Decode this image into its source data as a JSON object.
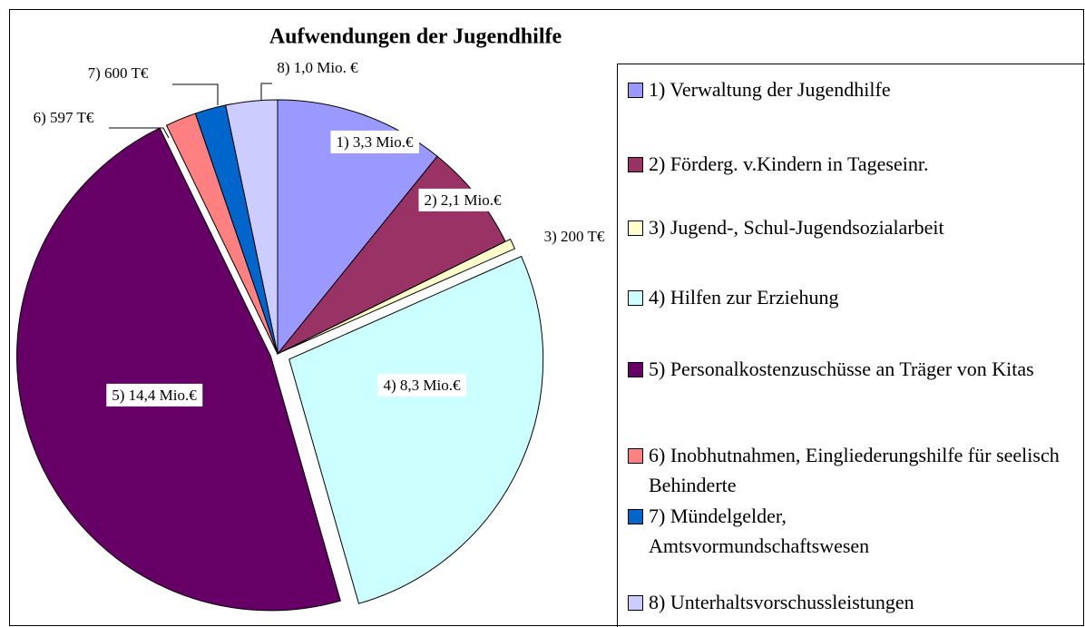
{
  "chart_data": {
    "type": "pie",
    "title": "Aufwendungen der Jugendhilfe",
    "categories": [
      "1) Verwaltung der Jugendhilfe",
      "2) Förderg. v.Kindern in Tageseinr.",
      "3) Jugend-, Schul-Jugendsozialarbeit",
      "4) Hilfen zur Erziehung",
      "5) Personalkostenzuschüsse an Träger von Kitas",
      "6) Inobhutnahmen, Eingliederungshilfe für seelisch Behinderte",
      "7) Mündelgelder, Amtsvormundschaftswesen",
      "8) Unterhaltsvorschussleistungen"
    ],
    "values": [
      3300000,
      2100000,
      200000,
      8300000,
      14400000,
      597000,
      600000,
      1000000
    ],
    "value_labels": [
      "1) 3,3 Mio.€",
      "2) 2,1 Mio.€",
      "3) 200 T€",
      "4) 8,3 Mio.€",
      "5) 14,4 Mio.€",
      "6) 597 T€",
      "7) 600 T€",
      "8) 1,0 Mio. €"
    ],
    "colors": [
      "#9999ff",
      "#993366",
      "#ffffcc",
      "#ccffff",
      "#660066",
      "#ff8080",
      "#0066cc",
      "#ccccff"
    ],
    "legend": "right"
  }
}
